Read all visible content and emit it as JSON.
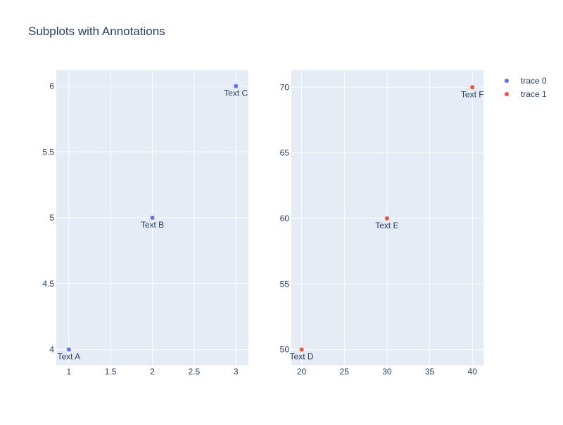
{
  "title": "Subplots with Annotations",
  "colors": {
    "plot_bg": "#e5ecf6",
    "grid": "#ffffff",
    "text": "#2a3f5f",
    "trace0": "#636efa",
    "trace1": "#ef553b"
  },
  "legend": {
    "position": "top-right",
    "items": [
      {
        "label": "trace 0",
        "color": "#636efa"
      },
      {
        "label": "trace 1",
        "color": "#ef553b"
      }
    ]
  },
  "chart_data": [
    {
      "type": "scatter",
      "subplot": "left",
      "grid": true,
      "xlim": [
        0.85,
        3.15
      ],
      "ylim": [
        3.88,
        6.12
      ],
      "xticks": [
        1,
        1.5,
        2,
        2.5,
        3
      ],
      "xtick_labels": [
        "1",
        "1.5",
        "2",
        "2.5",
        "3"
      ],
      "yticks": [
        4,
        4.5,
        5,
        5.5,
        6
      ],
      "ytick_labels": [
        "4",
        "4.5",
        "5",
        "5.5",
        "6"
      ],
      "series": [
        {
          "name": "trace 0",
          "color": "#636efa",
          "x": [
            1,
            2,
            3
          ],
          "y": [
            4,
            5,
            6
          ],
          "text": [
            "Text A",
            "Text B",
            "Text C"
          ],
          "textposition": "bottom center"
        }
      ]
    },
    {
      "type": "scatter",
      "subplot": "right",
      "grid": true,
      "xlim": [
        18.8,
        41.3
      ],
      "ylim": [
        48.8,
        71.3
      ],
      "xticks": [
        20,
        25,
        30,
        35,
        40
      ],
      "xtick_labels": [
        "20",
        "25",
        "30",
        "35",
        "40"
      ],
      "yticks": [
        50,
        55,
        60,
        65,
        70
      ],
      "ytick_labels": [
        "50",
        "55",
        "60",
        "65",
        "70"
      ],
      "series": [
        {
          "name": "trace 1",
          "color": "#ef553b",
          "x": [
            20,
            30,
            40
          ],
          "y": [
            50,
            60,
            70
          ],
          "text": [
            "Text D",
            "Text E",
            "Text F"
          ],
          "textposition": "bottom center"
        }
      ]
    }
  ]
}
